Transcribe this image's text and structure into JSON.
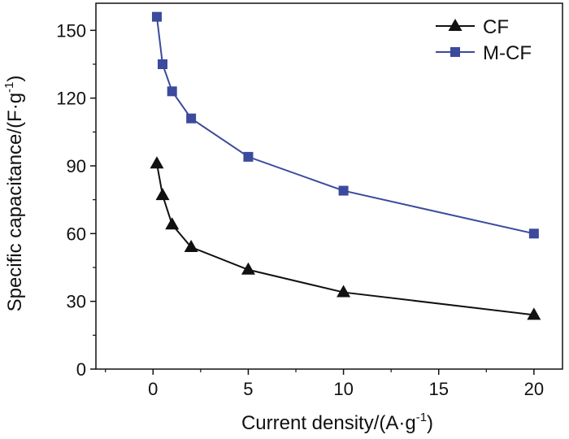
{
  "chart_data": {
    "type": "line",
    "xlabel": "Current density/(A·g",
    "xlabel_sup": "-1",
    "xlabel_end": ")",
    "ylabel": "Specific capacitance/(F·g",
    "ylabel_sup": "-1",
    "ylabel_end": ")",
    "xlim": [
      -3,
      21.5
    ],
    "ylim": [
      0,
      162
    ],
    "x_ticks": [
      0,
      5,
      10,
      15,
      20
    ],
    "x_tick_labels": [
      "0",
      "5",
      "10",
      "15",
      "20"
    ],
    "y_ticks": [
      0,
      30,
      60,
      90,
      120,
      150
    ],
    "y_tick_labels": [
      "0",
      "30",
      "60",
      "90",
      "120",
      "150"
    ],
    "legend_position": "top-right",
    "grid": false,
    "series": [
      {
        "name": "CF",
        "marker": "triangle",
        "color": "#111111",
        "x": [
          0.2,
          0.5,
          1,
          2,
          5,
          10,
          20
        ],
        "y": [
          91,
          77,
          64,
          54,
          44,
          34,
          24
        ]
      },
      {
        "name": "M-CF",
        "marker": "square",
        "color": "#3b4a9c",
        "x": [
          0.2,
          0.5,
          1,
          2,
          5,
          10,
          20
        ],
        "y": [
          156,
          135,
          123,
          111,
          94,
          79,
          60
        ]
      }
    ]
  }
}
